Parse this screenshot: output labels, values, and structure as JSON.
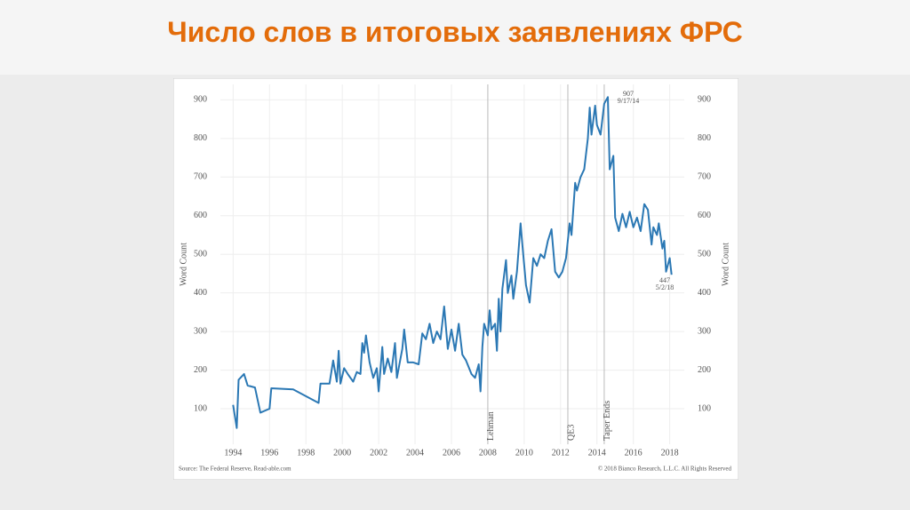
{
  "slide": {
    "title": "Число слов в итоговых заявлениях ФРС"
  },
  "chart_data": {
    "type": "line",
    "y_label": "Word Count",
    "y2_label": "Word Count",
    "xlim": [
      1993.3,
      2018.8
    ],
    "ylim": [
      8,
      940
    ],
    "xticks": [
      1994,
      1996,
      1998,
      2000,
      2002,
      2004,
      2006,
      2008,
      2010,
      2012,
      2014,
      2016,
      2018
    ],
    "yticks": [
      100,
      200,
      300,
      400,
      500,
      600,
      700,
      800,
      900
    ],
    "grid": true,
    "series": [
      {
        "name": "Word Count",
        "color": "#2b78b4",
        "x": [
          1994.0,
          1994.2,
          1994.3,
          1994.6,
          1994.8,
          1995.2,
          1995.5,
          1996.0,
          1996.1,
          1997.3,
          1998.7,
          1998.8,
          1999.3,
          1999.5,
          1999.7,
          1999.8,
          1999.9,
          2000.1,
          2000.3,
          2000.6,
          2000.8,
          2001.0,
          2001.1,
          2001.2,
          2001.3,
          2001.5,
          2001.7,
          2001.9,
          2002.0,
          2002.2,
          2002.3,
          2002.5,
          2002.7,
          2002.9,
          2003.0,
          2003.3,
          2003.4,
          2003.6,
          2003.9,
          2004.2,
          2004.4,
          2004.6,
          2004.8,
          2005.0,
          2005.2,
          2005.4,
          2005.6,
          2005.8,
          2006.0,
          2006.2,
          2006.4,
          2006.6,
          2006.8,
          2007.1,
          2007.3,
          2007.5,
          2007.6,
          2007.7,
          2007.8,
          2008.0,
          2008.1,
          2008.2,
          2008.4,
          2008.5,
          2008.6,
          2008.7,
          2008.8,
          2009.0,
          2009.1,
          2009.3,
          2009.4,
          2009.6,
          2009.8,
          2009.9,
          2010.1,
          2010.3,
          2010.5,
          2010.7,
          2010.9,
          2011.1,
          2011.3,
          2011.5,
          2011.7,
          2011.9,
          2012.1,
          2012.3,
          2012.5,
          2012.6,
          2012.8,
          2012.9,
          2013.1,
          2013.3,
          2013.5,
          2013.6,
          2013.7,
          2013.9,
          2014.0,
          2014.2,
          2014.4,
          2014.6,
          2014.7,
          2014.9,
          2015.0,
          2015.2,
          2015.4,
          2015.6,
          2015.8,
          2016.0,
          2016.2,
          2016.4,
          2016.6,
          2016.8,
          2017.0,
          2017.1,
          2017.3,
          2017.4,
          2017.6,
          2017.7,
          2017.8,
          2018.0,
          2018.1
        ],
        "values": [
          110,
          50,
          175,
          190,
          160,
          155,
          90,
          100,
          153,
          150,
          115,
          165,
          165,
          225,
          170,
          250,
          165,
          205,
          190,
          170,
          195,
          190,
          270,
          245,
          290,
          220,
          180,
          205,
          145,
          260,
          190,
          230,
          195,
          270,
          180,
          255,
          305,
          220,
          220,
          215,
          295,
          280,
          320,
          270,
          300,
          280,
          365,
          255,
          305,
          250,
          320,
          240,
          225,
          190,
          180,
          215,
          145,
          260,
          320,
          290,
          355,
          305,
          320,
          250,
          385,
          300,
          410,
          485,
          400,
          445,
          385,
          455,
          580,
          525,
          420,
          375,
          490,
          470,
          500,
          490,
          535,
          565,
          455,
          440,
          455,
          490,
          580,
          550,
          685,
          665,
          700,
          720,
          800,
          880,
          810,
          885,
          835,
          810,
          890,
          907,
          720,
          755,
          595,
          560,
          605,
          570,
          610,
          570,
          595,
          560,
          630,
          615,
          525,
          570,
          550,
          580,
          515,
          535,
          455,
          490,
          447
        ]
      }
    ],
    "events": [
      "Lehman",
      "QE3",
      "Taper Ends"
    ],
    "event_x": [
      2008.0,
      2012.4,
      2014.4
    ],
    "annotations": [
      [
        "907",
        "9/17/14"
      ],
      [
        "447",
        "5/2/18"
      ]
    ],
    "source": "Source: The Federal Reserve, Read-able.com",
    "copyright": "© 2018 Bianco Research, L.L.C. All Rights Reserved"
  }
}
